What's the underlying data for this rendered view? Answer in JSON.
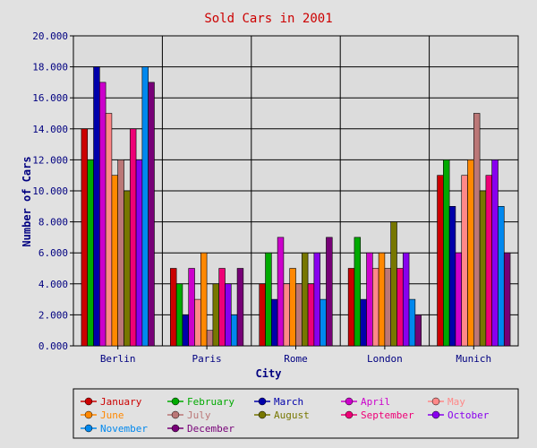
{
  "chart_data": {
    "type": "bar",
    "title": "Sold Cars in 2001",
    "xlabel": "City",
    "ylabel": "Number of Cars",
    "ylim": [
      0,
      20000
    ],
    "y_ticks": [
      "0.000",
      "2.000",
      "4.000",
      "6.000",
      "8.000",
      "10.000",
      "12.000",
      "14.000",
      "16.000",
      "18.000",
      "20.000"
    ],
    "categories": [
      "Berlin",
      "Paris",
      "Rome",
      "London",
      "Munich"
    ],
    "grid": true,
    "legend_position": "bottom",
    "series": [
      {
        "name": "January",
        "color": "#cc0000",
        "values": [
          14000,
          5000,
          4000,
          5000,
          11000
        ]
      },
      {
        "name": "February",
        "color": "#00aa00",
        "values": [
          12000,
          4000,
          6000,
          7000,
          12000
        ]
      },
      {
        "name": "March",
        "color": "#0000aa",
        "values": [
          18000,
          2000,
          3000,
          3000,
          9000
        ]
      },
      {
        "name": "April",
        "color": "#cc00cc",
        "values": [
          17000,
          5000,
          7000,
          6000,
          6000
        ]
      },
      {
        "name": "May",
        "color": "#ff8888",
        "values": [
          15000,
          3000,
          4000,
          5000,
          11000
        ]
      },
      {
        "name": "June",
        "color": "#ff8800",
        "values": [
          11000,
          6000,
          5000,
          6000,
          12000
        ]
      },
      {
        "name": "July",
        "color": "#bb7777",
        "values": [
          12000,
          1000,
          4000,
          5000,
          15000
        ]
      },
      {
        "name": "August",
        "color": "#777700",
        "values": [
          10000,
          4000,
          6000,
          8000,
          10000
        ]
      },
      {
        "name": "September",
        "color": "#ee0077",
        "values": [
          14000,
          5000,
          4000,
          5000,
          11000
        ]
      },
      {
        "name": "October",
        "color": "#8800ee",
        "values": [
          12000,
          4000,
          6000,
          6000,
          12000
        ]
      },
      {
        "name": "November",
        "color": "#0088ee",
        "values": [
          18000,
          2000,
          3000,
          3000,
          9000
        ]
      },
      {
        "name": "December",
        "color": "#770077",
        "values": [
          17000,
          5000,
          7000,
          2000,
          6000
        ]
      }
    ]
  }
}
